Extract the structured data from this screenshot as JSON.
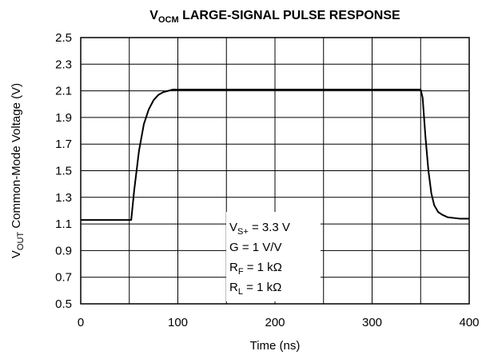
{
  "chart_data": {
    "type": "line",
    "title": [
      "V",
      "OCM",
      " LARGE-SIGNAL PULSE RESPONSE"
    ],
    "xlabel": "Time (ns)",
    "ylabel": [
      "V",
      "OUT",
      " Common-Mode Voltage (V)"
    ],
    "annotations": [
      [
        "V",
        "S+",
        " = 3.3 V"
      ],
      [
        "G = 1 V/V"
      ],
      [
        "R",
        "F",
        " = 1 kΩ"
      ],
      [
        "R",
        "L",
        " = 1 kΩ"
      ]
    ],
    "xlim": [
      0,
      400
    ],
    "xticks": [
      0,
      100,
      200,
      300,
      400
    ],
    "xminor": [
      50,
      150,
      250,
      350
    ],
    "ylim": [
      0.5,
      2.5
    ],
    "yticks": [
      0.5,
      0.7,
      0.9,
      1.1,
      1.3,
      1.5,
      1.7,
      1.9,
      2.1,
      2.3,
      2.5
    ],
    "grid": true,
    "series": [
      {
        "color": "#000000",
        "x": [
          0,
          50,
          52,
          55,
          60,
          65,
          70,
          75,
          80,
          85,
          90,
          95,
          100,
          110,
          150,
          200,
          250,
          300,
          345,
          350,
          352,
          355,
          358,
          361,
          364,
          368,
          372,
          378,
          390,
          400
        ],
        "values": [
          1.13,
          1.13,
          1.13,
          1.35,
          1.65,
          1.85,
          1.96,
          2.03,
          2.07,
          2.09,
          2.1,
          2.11,
          2.11,
          2.11,
          2.11,
          2.11,
          2.11,
          2.11,
          2.11,
          2.11,
          2.05,
          1.75,
          1.5,
          1.33,
          1.24,
          1.19,
          1.17,
          1.15,
          1.14,
          1.14
        ]
      }
    ]
  }
}
